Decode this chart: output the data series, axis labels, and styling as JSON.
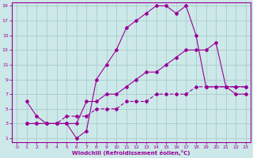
{
  "xlabel": "Windchill (Refroidissement éolien,°C)",
  "background_color": "#cce8e8",
  "line_color": "#990099",
  "grid_color": "#aacccc",
  "xlim": [
    -0.5,
    23.5
  ],
  "ylim": [
    0.5,
    19.5
  ],
  "xticks": [
    0,
    1,
    2,
    3,
    4,
    5,
    6,
    7,
    8,
    9,
    10,
    11,
    12,
    13,
    14,
    15,
    16,
    17,
    18,
    19,
    20,
    21,
    22,
    23
  ],
  "yticks": [
    1,
    3,
    5,
    7,
    9,
    11,
    13,
    15,
    17,
    19
  ],
  "line1_x": [
    1,
    2,
    3,
    4,
    5,
    6,
    7,
    8,
    9,
    10,
    11,
    12,
    13,
    14,
    15,
    16,
    17,
    18,
    19,
    20,
    21,
    22,
    23
  ],
  "line1_y": [
    6,
    4,
    3,
    3,
    3,
    1,
    2,
    9,
    11,
    13,
    16,
    17,
    18,
    19,
    19,
    18,
    19,
    15,
    8,
    8,
    8,
    7,
    7
  ],
  "line2_x": [
    1,
    2,
    3,
    4,
    5,
    6,
    7,
    8,
    9,
    10,
    11,
    12,
    13,
    14,
    15,
    16,
    17,
    18,
    19,
    20,
    21,
    22,
    23
  ],
  "line2_y": [
    3,
    3,
    3,
    3,
    3,
    3,
    6,
    6,
    7,
    7,
    8,
    9,
    10,
    10,
    11,
    12,
    13,
    13,
    13,
    14,
    8,
    8,
    8
  ],
  "line3_x": [
    1,
    2,
    3,
    4,
    5,
    6,
    7,
    8,
    9,
    10,
    11,
    12,
    13,
    14,
    15,
    16,
    17,
    18,
    19,
    20,
    21,
    22,
    23
  ],
  "line3_y": [
    3,
    3,
    3,
    3,
    4,
    4,
    4,
    5,
    5,
    5,
    6,
    6,
    6,
    7,
    7,
    7,
    7,
    8,
    8,
    8,
    8,
    8,
    8
  ]
}
